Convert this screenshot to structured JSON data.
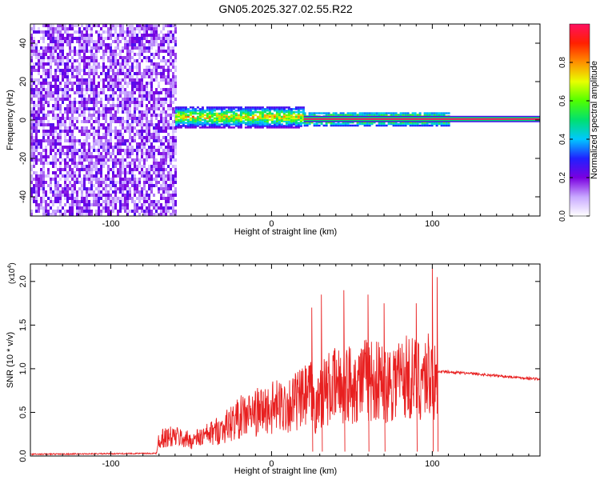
{
  "figure_title": "GN05.2025.327.02.55.R22",
  "chart_data": [
    {
      "type": "heatmap",
      "title": "GN05.2025.327.02.55.R22",
      "xlabel": "Height of straight line (km)",
      "ylabel": "Frequency (Hz)",
      "xlim": [
        -150,
        167
      ],
      "ylim": [
        -50,
        50
      ],
      "x_ticks": [
        -100,
        0,
        100
      ],
      "y_ticks": [
        -40,
        -20,
        0,
        20,
        40
      ],
      "x_tick_labels": [
        "-100",
        "0",
        "100"
      ],
      "y_tick_labels": [
        "-40",
        "-20",
        "0",
        "20",
        "40"
      ],
      "colorbar": {
        "label": "Normalized spectral amplitude",
        "range": [
          0,
          1
        ],
        "ticks": [
          0.0,
          0.2,
          0.4,
          0.6,
          0.8
        ],
        "tick_labels": [
          "0.0",
          "0.2",
          "0.4",
          "0.6",
          "0.8"
        ],
        "colors": [
          "#ffffff",
          "#c8a8ff",
          "#7a00e0",
          "#2020ff",
          "#00c8ff",
          "#00e070",
          "#50ff00",
          "#e8ff00",
          "#ff9000",
          "#ff2000",
          "#ff1060"
        ]
      },
      "regions": [
        {
          "kind": "broadband_noise",
          "x_range": [
            -150,
            -60
          ],
          "freq_range": [
            -50,
            50
          ],
          "amplitude": [
            0.05,
            0.25
          ]
        },
        {
          "kind": "signal_band",
          "x_range": [
            -60,
            20
          ],
          "freq_range": [
            -4,
            7
          ],
          "amplitude": [
            0.2,
            0.9
          ]
        },
        {
          "kind": "signal_band",
          "x_range": [
            20,
            110
          ],
          "freq_range": [
            -3,
            4
          ],
          "amplitude": [
            0.3,
            1.0
          ]
        },
        {
          "kind": "tone_line",
          "x_range": [
            20,
            167
          ],
          "freq_center": 0.5,
          "amplitude": 1.0
        }
      ],
      "grid": false,
      "legend": "none"
    },
    {
      "type": "line",
      "title": "",
      "xlabel": "Height of straight line (km)",
      "ylabel": "SNR (10 * v/v)",
      "y_multiplier_label": "(x10",
      "y_multiplier_exp": "4",
      "xlim": [
        -150,
        167
      ],
      "ylim": [
        0,
        2.2
      ],
      "x_ticks": [
        -100,
        0,
        100
      ],
      "y_ticks": [
        0.0,
        0.5,
        1.0,
        1.5,
        2.0
      ],
      "x_tick_labels": [
        "-100",
        "0",
        "100"
      ],
      "y_tick_labels": [
        "0.0",
        "0.5",
        "1.0",
        "1.5",
        "2.0"
      ],
      "line_color": "#e82020",
      "envelope": {
        "x": [
          -150,
          -72,
          -70,
          -60,
          -50,
          -40,
          -30,
          -20,
          -10,
          0,
          10,
          20,
          25,
          28,
          30,
          40,
          50,
          60,
          70,
          80,
          90,
          100,
          102,
          105,
          120,
          140,
          167
        ],
        "y": [
          0.02,
          0.03,
          0.25,
          0.28,
          0.22,
          0.3,
          0.4,
          0.55,
          0.62,
          0.68,
          0.74,
          0.82,
          0.9,
          0.6,
          0.9,
          1.0,
          1.05,
          1.1,
          1.05,
          1.15,
          1.1,
          1.2,
          0.97,
          0.97,
          0.95,
          0.92,
          0.88
        ]
      },
      "spikes": [
        {
          "x": 25,
          "y": 1.7
        },
        {
          "x": 31,
          "y": 1.85
        },
        {
          "x": 45,
          "y": 1.9
        },
        {
          "x": 60,
          "y": 1.85
        },
        {
          "x": 70,
          "y": 1.75
        },
        {
          "x": 90,
          "y": 1.75
        },
        {
          "x": 100,
          "y": 2.15
        },
        {
          "x": 103,
          "y": 2.05
        }
      ],
      "grid": false,
      "legend": "none"
    }
  ]
}
